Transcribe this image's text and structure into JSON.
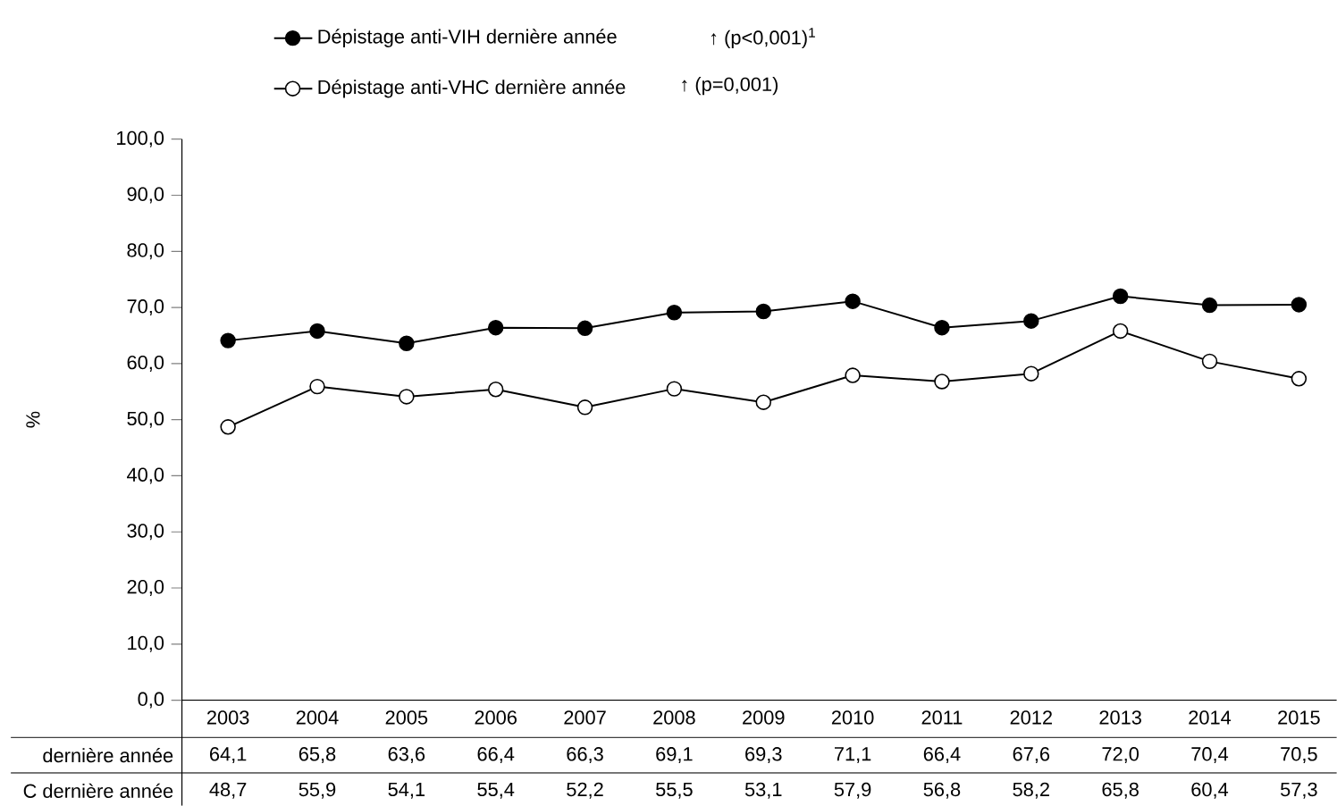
{
  "chart_data": {
    "type": "line",
    "ylabel": "%",
    "categories": [
      "2003",
      "2004",
      "2005",
      "2006",
      "2007",
      "2008",
      "2009",
      "2010",
      "2011",
      "2012",
      "2013",
      "2014",
      "2015"
    ],
    "series": [
      {
        "name": "Dépistage anti-VIH dernière année",
        "color": "#000000",
        "values": [
          64.1,
          65.8,
          63.6,
          66.4,
          66.3,
          69.1,
          69.3,
          71.1,
          66.4,
          67.6,
          72.0,
          70.4,
          70.5
        ],
        "value_labels": [
          "64,1",
          "65,8",
          "63,6",
          "66,4",
          "66,3",
          "69,1",
          "69,3",
          "71,1",
          "66,4",
          "67,6",
          "72,0",
          "70,4",
          "70,5"
        ]
      },
      {
        "name": "Dépistage anti-VHC dernière année",
        "color": "#000000",
        "values": [
          48.7,
          55.9,
          54.1,
          55.4,
          52.2,
          55.5,
          53.1,
          57.9,
          56.8,
          58.2,
          65.8,
          60.4,
          57.3
        ],
        "value_labels": [
          "48,7",
          "55,9",
          "54,1",
          "55,4",
          "52,2",
          "55,5",
          "53,1",
          "57,9",
          "56,8",
          "58,2",
          "65,8",
          "60,4",
          "57,3"
        ]
      }
    ],
    "ylim": [
      0,
      100
    ],
    "yticks": [
      {
        "value": 0,
        "label": "0,0"
      },
      {
        "value": 10,
        "label": "10,0"
      },
      {
        "value": 20,
        "label": "20,0"
      },
      {
        "value": 30,
        "label": "30,0"
      },
      {
        "value": 40,
        "label": "40,0"
      },
      {
        "value": 50,
        "label": "50,0"
      },
      {
        "value": 60,
        "label": "60,0"
      },
      {
        "value": 70,
        "label": "70,0"
      },
      {
        "value": 80,
        "label": "80,0"
      },
      {
        "value": 90,
        "label": "90,0"
      },
      {
        "value": 100,
        "label": "100,0"
      }
    ],
    "marker": "circle",
    "legend": "top",
    "grid": false,
    "annotations": [
      "↑ (p<0,001)$^{1}$",
      "↑ (p=0,001)",
      "dernière année",
      "C dernière année"
    ]
  }
}
